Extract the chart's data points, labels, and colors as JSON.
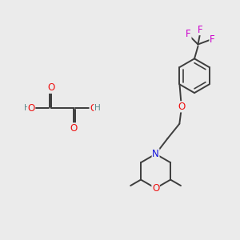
{
  "background_color": "#EBEBEB",
  "bond_color": "#3d3d3d",
  "bond_width": 1.4,
  "figsize": [
    3.0,
    3.0
  ],
  "dpi": 100,
  "atom_colors": {
    "O": "#EE1111",
    "N": "#1111DD",
    "F": "#CC00CC",
    "C": "#3d3d3d",
    "H": "#5a8a8a"
  },
  "font_size": 8.5,
  "font_size_sub": 7.5
}
